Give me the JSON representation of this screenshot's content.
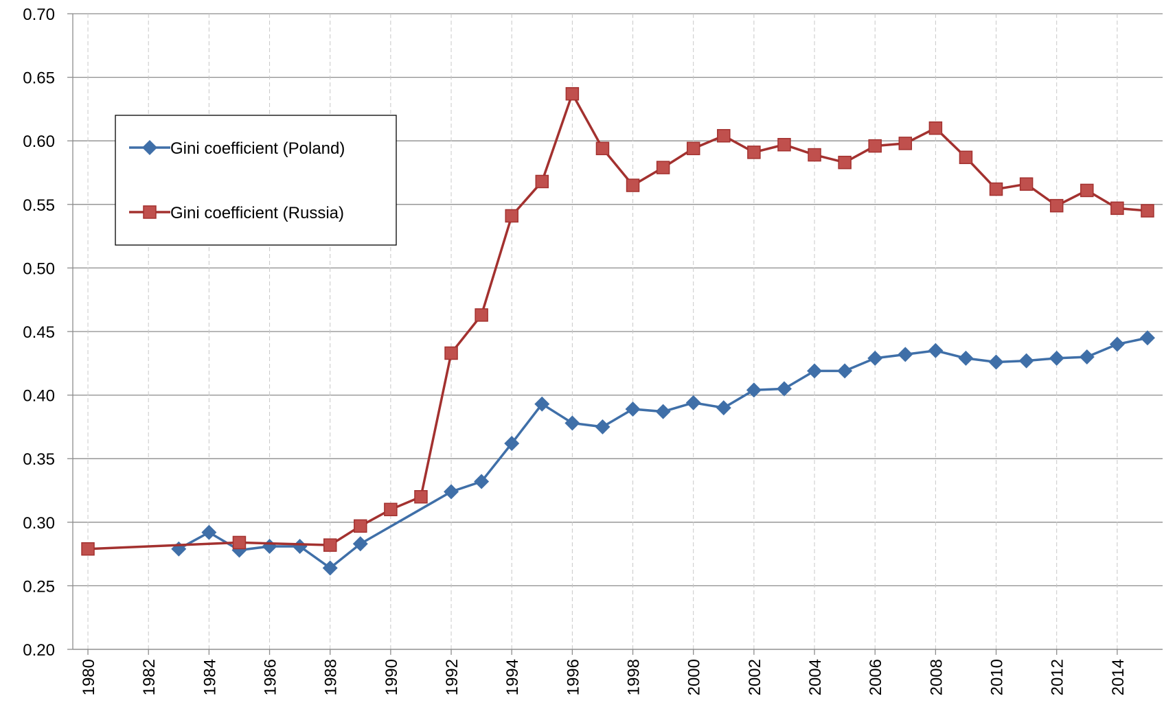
{
  "chart_data": {
    "type": "line",
    "xlim": [
      1979.5,
      2015.5
    ],
    "xticks": [
      1980,
      1982,
      1984,
      1986,
      1988,
      1990,
      1992,
      1994,
      1996,
      1998,
      2000,
      2002,
      2004,
      2006,
      2008,
      2010,
      2012,
      2014
    ],
    "ylim": [
      0.2,
      0.7
    ],
    "yticks": [
      {
        "value": 0.2,
        "label": "0.20"
      },
      0.25,
      {
        "value": 0.3,
        "label": "0.30"
      },
      0.35,
      {
        "value": 0.4,
        "label": "0.40"
      },
      0.45,
      {
        "value": 0.5,
        "label": "0.50"
      },
      0.55,
      {
        "value": 0.6,
        "label": "0.60"
      },
      0.65,
      {
        "value": 0.7,
        "label": "0.70"
      }
    ],
    "grid": true,
    "legend_position": "upper left",
    "series": [
      {
        "name": "Gini coefficient (Poland)",
        "color": "#3F6FA8",
        "marker": "diamond",
        "x": [
          1983,
          1984,
          1985,
          1986,
          1987,
          1988,
          1989,
          1992,
          1993,
          1994,
          1995,
          1996,
          1997,
          1998,
          1999,
          2000,
          2001,
          2002,
          2003,
          2004,
          2005,
          2006,
          2007,
          2008,
          2009,
          2010,
          2011,
          2012,
          2013,
          2014,
          2015
        ],
        "values": [
          0.279,
          0.292,
          0.278,
          0.281,
          0.281,
          0.264,
          0.283,
          0.324,
          0.332,
          0.362,
          0.393,
          0.378,
          0.375,
          0.389,
          0.387,
          0.394,
          0.39,
          0.404,
          0.405,
          0.419,
          0.419,
          0.429,
          0.432,
          0.435,
          0.429,
          0.426,
          0.427,
          0.429,
          0.43,
          0.44,
          0.445
        ]
      },
      {
        "name": "Gini coefficient (Russia)",
        "color": "#A3312F",
        "marker": "square",
        "x": [
          1980,
          1985,
          1988,
          1989,
          1990,
          1991,
          1992,
          1993,
          1994,
          1995,
          1996,
          1997,
          1998,
          1999,
          2000,
          2001,
          2002,
          2003,
          2004,
          2005,
          2006,
          2007,
          2008,
          2009,
          2010,
          2011,
          2012,
          2013,
          2014,
          2015
        ],
        "values": [
          0.279,
          0.284,
          0.282,
          0.297,
          0.31,
          0.32,
          0.433,
          0.463,
          0.541,
          0.568,
          0.637,
          0.594,
          0.565,
          0.579,
          0.594,
          0.604,
          0.591,
          0.597,
          0.589,
          0.583,
          0.596,
          0.598,
          0.61,
          0.587,
          0.562,
          0.566,
          0.549,
          0.561,
          0.547,
          0.545
        ]
      }
    ]
  }
}
